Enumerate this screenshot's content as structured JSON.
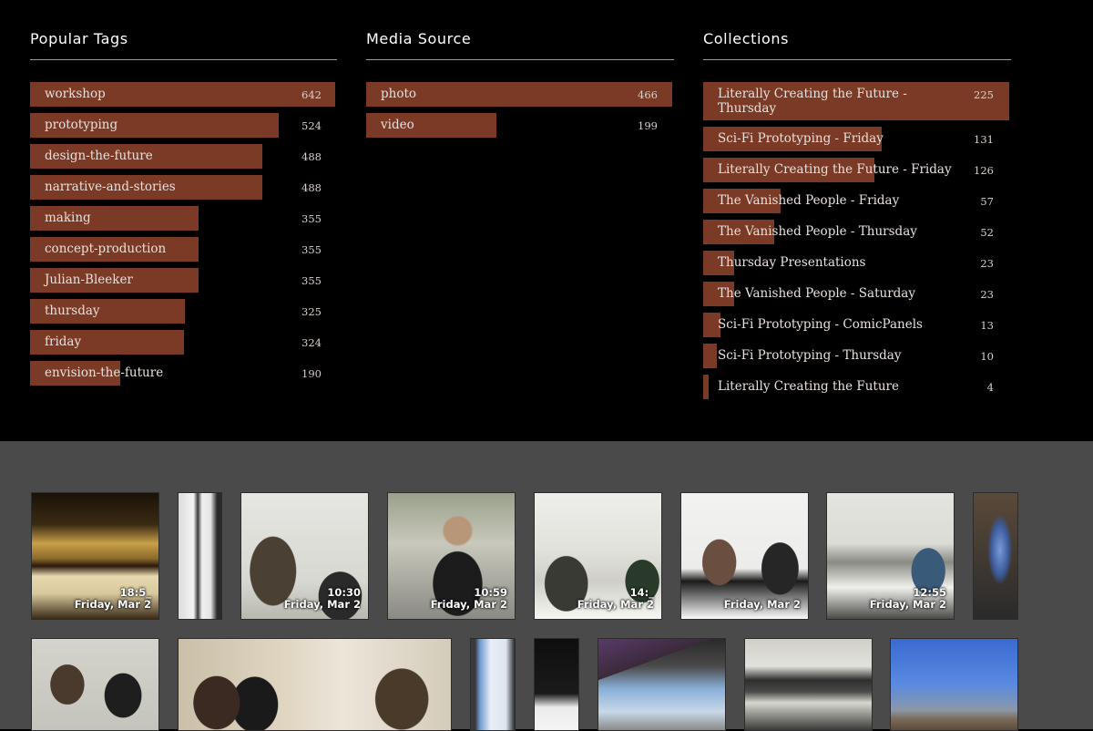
{
  "colors": {
    "bar": "#7a3a26",
    "top_bg": "#000000",
    "bottom_bg": "#4a4a4a"
  },
  "popular_tags": {
    "title": "Popular Tags",
    "items": [
      {
        "label": "workshop",
        "count": "642",
        "value": 642
      },
      {
        "label": "prototyping",
        "count": "524",
        "value": 524
      },
      {
        "label": "design-the-future",
        "count": "488",
        "value": 488
      },
      {
        "label": "narrative-and-stories",
        "count": "488",
        "value": 488
      },
      {
        "label": "making",
        "count": "355",
        "value": 355
      },
      {
        "label": "concept-production",
        "count": "355",
        "value": 355
      },
      {
        "label": "Julian-Bleeker",
        "count": "355",
        "value": 355
      },
      {
        "label": "thursday",
        "count": "325",
        "value": 325
      },
      {
        "label": "friday",
        "count": "324",
        "value": 324
      },
      {
        "label": "envision-the-future",
        "count": "190",
        "value": 190
      }
    ]
  },
  "media_source": {
    "title": "Media Source",
    "items": [
      {
        "label": "photo",
        "count": "466",
        "value": 466
      },
      {
        "label": "video",
        "count": "199",
        "value": 199
      }
    ]
  },
  "collections": {
    "title": "Collections",
    "items": [
      {
        "label": "Literally Creating the Future - Thursday",
        "count": "225",
        "value": 225
      },
      {
        "label": "Sci-Fi Prototyping - Friday",
        "count": "131",
        "value": 131
      },
      {
        "label": "Literally Creating the Future - Friday",
        "count": "126",
        "value": 126
      },
      {
        "label": "The Vanished People - Friday",
        "count": "57",
        "value": 57
      },
      {
        "label": "The Vanished People - Thursday",
        "count": "52",
        "value": 52
      },
      {
        "label": "Thursday Presentations",
        "count": "23",
        "value": 23
      },
      {
        "label": "The Vanished People - Saturday",
        "count": "23",
        "value": 23
      },
      {
        "label": "Sci-Fi Prototyping - ComicPanels",
        "count": "13",
        "value": 13
      },
      {
        "label": "Sci-Fi Prototyping - Thursday",
        "count": "10",
        "value": 10
      },
      {
        "label": "Literally Creating the Future",
        "count": "4",
        "value": 4
      }
    ]
  },
  "thumbnails": [
    {
      "time": "18:5_",
      "date": "Friday, Mar 2",
      "scene": "lecture-hall"
    },
    {
      "time": "",
      "date": "",
      "scene": "doorway"
    },
    {
      "time": "10:30",
      "date": "Friday, Mar 2",
      "scene": "people-standing"
    },
    {
      "time": "10:59",
      "date": "Friday, Mar 2",
      "scene": "man-seated"
    },
    {
      "time": "14:_",
      "date": "Friday, Mar 2",
      "scene": "group-table"
    },
    {
      "time": "",
      "date": "Friday, Mar 2",
      "scene": "meeting-laptop"
    },
    {
      "time": "12:55",
      "date": "Friday, Mar 2",
      "scene": "classroom-laptops"
    },
    {
      "time": "",
      "date": "",
      "scene": "blue-light-person"
    },
    {
      "time": "",
      "date": "",
      "scene": "seated-group"
    },
    {
      "time": "",
      "date": "",
      "scene": "whiteboard-discussion"
    },
    {
      "time": "",
      "date": "",
      "scene": "tablet"
    },
    {
      "time": "",
      "date": "",
      "scene": "dark-screen"
    },
    {
      "time": "",
      "date": "",
      "scene": "laptop-screen"
    },
    {
      "time": "",
      "date": "",
      "scene": "conference-room"
    },
    {
      "time": "",
      "date": "",
      "scene": "desert-sky"
    }
  ]
}
